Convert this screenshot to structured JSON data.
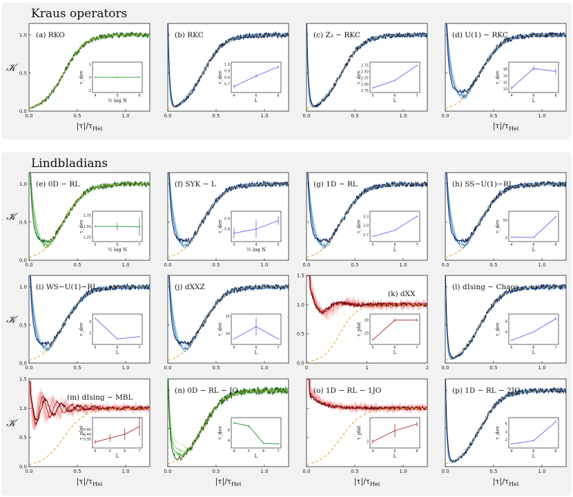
{
  "sections": [
    {
      "title": "Kraus operators"
    },
    {
      "title": "Lindbladians"
    }
  ],
  "axes": {
    "y_label": "𝒦",
    "x_label_full": "|τ|/τ_Hei",
    "x_label_text": "|τ|/τ",
    "x_label_sub": "Hei"
  },
  "colors": {
    "orange": "#f0a030",
    "green": [
      "#c8ecc0",
      "#98d890",
      "#58b050",
      "#206820"
    ],
    "blue": [
      "#bcdcec",
      "#7ab8dc",
      "#3a80c0",
      "#0c2860"
    ],
    "red": [
      "#f8c8c0",
      "#f08080",
      "#c83030",
      "#701010"
    ],
    "inset_blue": "#7070f0",
    "inset_green": "#30a040",
    "inset_red": "#b03838"
  },
  "chart_data": [
    {
      "type": "line",
      "id": "a",
      "label": "(a)  RKO",
      "row": 0,
      "col": 0,
      "family": "green",
      "curve": "ramp",
      "xlim": [
        0,
        1.25
      ],
      "ylim": [
        0,
        1.15
      ],
      "ticks_y": [
        "0.0",
        "0.5",
        "1.0"
      ],
      "ticks_x": [
        "0.0",
        "0.5",
        "1.0"
      ],
      "show_xlabel": true,
      "inset": {
        "ylabel": "τ_dev",
        "xlabel": "½ log N",
        "x": [
          4,
          5,
          6
        ],
        "xticks": [
          "4",
          "5",
          "6"
        ],
        "y": [
          0,
          0,
          0
        ],
        "err": [
          0.05,
          0.05,
          0.05
        ],
        "yticks": [
          "-1",
          "0",
          "1"
        ],
        "ylim": [
          -1,
          1
        ],
        "color": "green"
      }
    },
    {
      "type": "line",
      "id": "b",
      "label": "(b)  RKC",
      "row": 0,
      "col": 1,
      "family": "blue",
      "curve": "spike_ramp",
      "xlim": [
        0,
        1.25
      ],
      "ylim": [
        0,
        1.15
      ],
      "ticks_y": [],
      "ticks_x": [
        "0.0",
        "0.5",
        "1.0"
      ],
      "show_xlabel": false,
      "inset": {
        "ylabel": "τ_dev",
        "xlabel": "L",
        "x": [
          4,
          6,
          8
        ],
        "xticks": [
          "4",
          "6",
          "8"
        ],
        "y": [
          0.66,
          0.82,
          0.96
        ],
        "err": [
          0.03,
          0.03,
          0.02
        ],
        "yticks": [
          "0.7",
          "0.8",
          "0.9",
          "1.0"
        ],
        "ylim": [
          0.6,
          1.0
        ],
        "color": "blue"
      }
    },
    {
      "type": "line",
      "id": "c",
      "label": "(c)  Z₂ − RKC",
      "row": 0,
      "col": 2,
      "family": "blue",
      "curve": "spike_ramp",
      "xlim": [
        0,
        1.25
      ],
      "ylim": [
        0,
        1.15
      ],
      "ticks_y": [],
      "ticks_x": [
        "0.0",
        "0.5",
        "1.0"
      ],
      "show_xlabel": false,
      "inset": {
        "ylabel": "τ_dev",
        "xlabel": "L",
        "x": [
          5,
          6,
          7
        ],
        "xticks": [
          "5",
          "6",
          "7"
        ],
        "y": [
          1.85,
          2.15,
          2.75
        ],
        "err": [
          0,
          0,
          0
        ],
        "yticks": [
          "1.75",
          "2.00",
          "2.25",
          "2.50",
          "2.75"
        ],
        "ylim": [
          1.75,
          2.8
        ],
        "color": "blue"
      }
    },
    {
      "type": "line",
      "id": "d",
      "label": "(d)  U(1) − RKC",
      "row": 0,
      "col": 3,
      "family": "blue",
      "curve": "spike_dip",
      "xlim": [
        0,
        1.25
      ],
      "ylim": [
        0,
        1.15
      ],
      "ticks_y": [],
      "ticks_x": [
        "0.0",
        "0.5",
        "1.0"
      ],
      "show_xlabel": true,
      "inset": {
        "ylabel": "τ_dev",
        "xlabel": "L",
        "x": [
          4,
          6,
          8
        ],
        "xticks": [
          "4",
          "6",
          "8"
        ],
        "y": [
          10.2,
          16.2,
          15.3
        ],
        "err": [
          0.5,
          0.7,
          1.0
        ],
        "yticks": [
          "10",
          "12",
          "14",
          "16"
        ],
        "ylim": [
          9.5,
          17.5
        ],
        "color": "blue"
      }
    },
    {
      "type": "line",
      "id": "e",
      "label": "(e)  0D − RL",
      "row": 1,
      "col": 0,
      "family": "green",
      "curve": "spike_dip",
      "xlim": [
        0,
        1.25
      ],
      "ylim": [
        0,
        1.15
      ],
      "ticks_y": [
        "0.0",
        "0.5",
        "1.0"
      ],
      "ticks_x": [
        "0.0",
        "0.5",
        "1.0"
      ],
      "show_xlabel": false,
      "inset": {
        "ylabel": "τ_dev",
        "xlabel": "½ log N",
        "x": [
          5,
          6,
          7
        ],
        "xticks": [
          "5",
          "6",
          "7"
        ],
        "y": [
          1.5,
          1.5,
          1.49
        ],
        "err": [
          0.02,
          0.08,
          0.2
        ],
        "yticks": [
          "1.25",
          "1.50",
          "1.75"
        ],
        "ylim": [
          1.2,
          1.8
        ],
        "color": "green"
      }
    },
    {
      "type": "line",
      "id": "f",
      "label": "(f)  SYK − L",
      "row": 1,
      "col": 1,
      "family": "blue",
      "curve": "spike_dip",
      "xlim": [
        0,
        1.25
      ],
      "ylim": [
        0,
        1.15
      ],
      "ticks_y": [],
      "ticks_x": [
        "0.0",
        "0.5",
        "1.0"
      ],
      "show_xlabel": false,
      "inset": {
        "ylabel": "τ_dev",
        "xlabel": "½ log N",
        "x": [
          3,
          4,
          5
        ],
        "xticks": [
          "3",
          "4",
          "5"
        ],
        "y": [
          0.76,
          0.8,
          0.88
        ],
        "err": [
          0.05,
          0.08,
          0.04
        ],
        "yticks": [
          "0.8",
          "0.9"
        ],
        "ylim": [
          0.7,
          0.95
        ],
        "color": "blue"
      }
    },
    {
      "type": "line",
      "id": "g",
      "label": "(g)  1D − RL",
      "row": 1,
      "col": 2,
      "family": "blue",
      "curve": "spike_dip",
      "xlim": [
        0,
        1.25
      ],
      "ylim": [
        0,
        1.15
      ],
      "ticks_y": [],
      "ticks_x": [
        "0.0",
        "0.5",
        "1.0"
      ],
      "show_xlabel": false,
      "inset": {
        "ylabel": "τ_dev",
        "xlabel": "L",
        "x": [
          5,
          6,
          7
        ],
        "xticks": [
          "5",
          "6",
          "7"
        ],
        "y": [
          2.65,
          2.85,
          3.3
        ],
        "err": [
          0,
          0,
          0.03
        ],
        "yticks": [
          "2.7",
          "3.0",
          "3.3"
        ],
        "ylim": [
          2.55,
          3.4
        ],
        "color": "blue"
      }
    },
    {
      "type": "line",
      "id": "h",
      "label": "(h)  SS−U(1)−RL",
      "row": 1,
      "col": 3,
      "family": "blue",
      "curve": "spike_dip",
      "xlim": [
        0,
        1.25
      ],
      "ylim": [
        0,
        1.15
      ],
      "ticks_y": [],
      "ticks_x": [
        "0.0",
        "0.5",
        "1.0"
      ],
      "show_xlabel": false,
      "inset": {
        "ylabel": "τ_dev",
        "xlabel": "L",
        "x": [
          4,
          6,
          8
        ],
        "xticks": [
          "4",
          "6",
          "8"
        ],
        "y": [
          2,
          1,
          60
        ],
        "err": [
          0,
          0,
          0
        ],
        "yticks": [
          "0",
          "50"
        ],
        "ylim": [
          -5,
          70
        ],
        "color": "blue"
      }
    },
    {
      "type": "line",
      "id": "i",
      "label": "(i)  WS−U(1)−RL",
      "row": 2,
      "col": 0,
      "family": "blue",
      "curve": "spike_dip",
      "xlim": [
        0,
        1.25
      ],
      "ylim": [
        0,
        1.15
      ],
      "ticks_y": [
        "0.0",
        "0.5",
        "1.0"
      ],
      "ticks_x": [
        "0.0",
        "0.5",
        "1.0"
      ],
      "show_xlabel": false,
      "inset": {
        "ylabel": "τ_dev",
        "xlabel": "L",
        "x": [
          5,
          6,
          7
        ],
        "xticks": [
          "5",
          "6",
          "7"
        ],
        "y": [
          3.3,
          1.5,
          1.7
        ],
        "err": [
          0,
          0,
          0
        ],
        "yticks": [
          "2",
          "3"
        ],
        "ylim": [
          1.2,
          3.5
        ],
        "color": "blue"
      }
    },
    {
      "type": "line",
      "id": "j",
      "label": "(j)  dXXZ",
      "row": 2,
      "col": 1,
      "family": "blue",
      "curve": "spike_dip",
      "xlim": [
        0,
        1.25
      ],
      "ylim": [
        0,
        1.15
      ],
      "ticks_y": [],
      "ticks_x": [
        "0.0",
        "0.5",
        "1.0"
      ],
      "show_xlabel": false,
      "inset": {
        "ylabel": "τ_dev",
        "xlabel": "L",
        "x": [
          5,
          6,
          7
        ],
        "xticks": [
          "5",
          "6",
          "7"
        ],
        "y": [
          8.5,
          12,
          8.5
        ],
        "err": [
          0,
          2.5,
          0
        ],
        "yticks": [
          "10",
          "15"
        ],
        "ylim": [
          7.5,
          15
        ],
        "color": "blue"
      }
    },
    {
      "type": "line",
      "id": "k",
      "label": "(k)  dXX",
      "row": 2,
      "col": 2,
      "family": "red",
      "curve": "red_osc",
      "xlim": [
        0,
        2.0
      ],
      "ylim": [
        0,
        1.5
      ],
      "ticks_y": [
        "0.0",
        "0.5",
        "1.0",
        "1.5"
      ],
      "ticks_x": [
        "0",
        "1",
        "2"
      ],
      "show_xlabel": false,
      "inset": {
        "ylabel": "τ_plat",
        "xlabel": "L",
        "x": [
          5,
          6,
          7
        ],
        "xticks": [
          "5",
          "6",
          "7"
        ],
        "y": [
          15,
          30,
          30
        ],
        "err": [
          0,
          1,
          1
        ],
        "yticks": [
          "20",
          "30"
        ],
        "ylim": [
          13,
          33
        ],
        "color": "red"
      }
    },
    {
      "type": "line",
      "id": "l",
      "label": "(l)  dIsing − Chaos",
      "row": 2,
      "col": 3,
      "family": "blue",
      "curve": "spike_ramp",
      "xlim": [
        0,
        1.25
      ],
      "ylim": [
        0,
        1.15
      ],
      "ticks_y": [],
      "ticks_x": [
        "0.0",
        "0.5",
        "1.0"
      ],
      "show_xlabel": false,
      "inset": {
        "ylabel": "τ_dev",
        "xlabel": "L",
        "x": [
          5,
          6,
          7
        ],
        "xticks": [
          "5",
          "6",
          "7"
        ],
        "y": [
          2.4,
          4,
          6.5
        ],
        "err": [
          0,
          0,
          0.3
        ],
        "yticks": [
          "4",
          "6"
        ],
        "ylim": [
          2,
          7
        ],
        "color": "blue"
      }
    },
    {
      "type": "line",
      "id": "m",
      "label": "(m)  dIsing − MBL",
      "row": 3,
      "col": 0,
      "family": "red",
      "curve": "red_mbl",
      "xlim": [
        0,
        1.25
      ],
      "ylim": [
        0,
        1.5
      ],
      "ticks_y": [
        "0.0",
        "0.5",
        "1.0",
        "1.5"
      ],
      "ticks_x": [
        "0.0",
        "0.5",
        "1.0"
      ],
      "show_xlabel": true,
      "inset": {
        "ylabel": "τ_plat",
        "xlabel": "L",
        "x": [
          4,
          5,
          6,
          7
        ],
        "xticks": [
          "4",
          "5",
          "6",
          "7"
        ],
        "y": [
          0.32,
          0.36,
          0.4,
          0.48
        ],
        "err": [
          0.02,
          0.04,
          0.06,
          0.1
        ],
        "yticks": [
          "0.35",
          "0.40",
          "0.45"
        ],
        "ylim": [
          0.28,
          0.55
        ],
        "color": "red"
      }
    },
    {
      "type": "line",
      "id": "n",
      "label": "(n)  0D − RL − JO",
      "row": 3,
      "col": 1,
      "family": "green",
      "curve": "green_jo",
      "xlim": [
        0,
        1.25
      ],
      "ylim": [
        0,
        1.15
      ],
      "ticks_y": [],
      "ticks_x": [
        "0.0",
        "0.5",
        "1.0"
      ],
      "show_xlabel": true,
      "inset": {
        "ylabel": "τ_dev",
        "xlabel": "L",
        "x": [
          4,
          5,
          6,
          7
        ],
        "xticks": [
          "4",
          "5",
          "6",
          "7"
        ],
        "y": [
          7.4,
          6.8,
          3.5,
          3.4
        ],
        "err": [
          0.2,
          0.2,
          0.1,
          0.1
        ],
        "yticks": [
          "4",
          "6"
        ],
        "ylim": [
          3,
          8
        ],
        "color": "green"
      }
    },
    {
      "type": "line",
      "id": "o",
      "label": "(o)  1D − RL − 1JO",
      "row": 3,
      "col": 2,
      "family": "red",
      "curve": "red_1jo",
      "xlim": [
        0,
        1.25
      ],
      "ylim": [
        0,
        1.5
      ],
      "ticks_y": [],
      "ticks_x": [
        "0.0",
        "0.5",
        "1.0"
      ],
      "show_xlabel": true,
      "inset": {
        "ylabel": "τ_plat",
        "xlabel": "L",
        "x": [
          4,
          6,
          8
        ],
        "xticks": [
          "4",
          "6",
          "8"
        ],
        "y": [
          3,
          3.5,
          3.8
        ],
        "err": [
          0.1,
          0.3,
          0.1
        ],
        "yticks": [
          "3"
        ],
        "ylim": [
          2.8,
          4
        ],
        "color": "red"
      }
    },
    {
      "type": "line",
      "id": "p",
      "label": "(p)  1D − RL − 2JO",
      "row": 3,
      "col": 3,
      "family": "blue",
      "curve": "spike_ramp",
      "xlim": [
        0,
        1.25
      ],
      "ylim": [
        0,
        1.15
      ],
      "ticks_y": [],
      "ticks_x": [
        "0.0",
        "0.5",
        "1.0"
      ],
      "show_xlabel": true,
      "inset": {
        "ylabel": "τ_dev",
        "xlabel": "L",
        "x": [
          4,
          6,
          8
        ],
        "xticks": [
          "4",
          "6",
          "8"
        ],
        "y": [
          1,
          1.8,
          6.5
        ],
        "err": [
          0,
          0,
          0.2
        ],
        "yticks": [
          "2",
          "4",
          "6"
        ],
        "ylim": [
          0.5,
          7
        ],
        "color": "blue"
      }
    }
  ]
}
